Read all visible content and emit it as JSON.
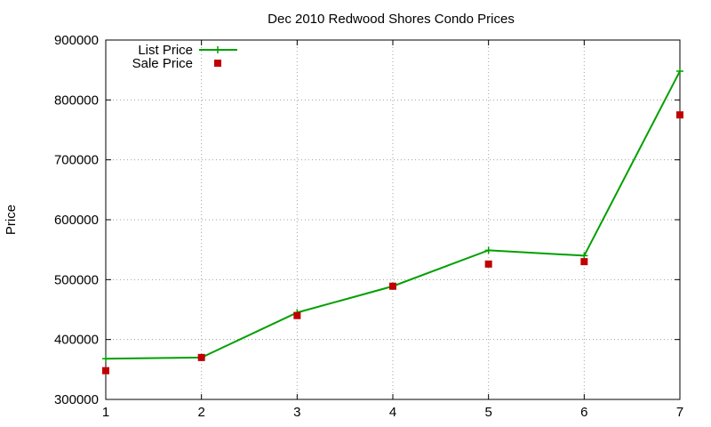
{
  "chart_data": {
    "type": "line",
    "title": "Dec 2010 Redwood Shores Condo Prices",
    "xlabel": "",
    "ylabel": "Price",
    "x": [
      1,
      2,
      3,
      4,
      5,
      6,
      7
    ],
    "xlim": [
      1,
      7
    ],
    "ylim": [
      300000,
      900000
    ],
    "xticks": [
      "1",
      "2",
      "3",
      "4",
      "5",
      "6",
      "7"
    ],
    "yticks": [
      "300000",
      "400000",
      "500000",
      "600000",
      "700000",
      "800000",
      "900000"
    ],
    "grid": true,
    "legend_position": "top-left",
    "series": [
      {
        "name": "List Price",
        "style": "line-with-plus-markers",
        "color": "#00a000",
        "values": [
          368000,
          370000,
          445000,
          489000,
          549000,
          540000,
          848000
        ]
      },
      {
        "name": "Sale Price",
        "style": "square-points",
        "color": "#c00000",
        "values": [
          348000,
          370000,
          440000,
          489000,
          526000,
          530000,
          775000
        ]
      }
    ]
  }
}
